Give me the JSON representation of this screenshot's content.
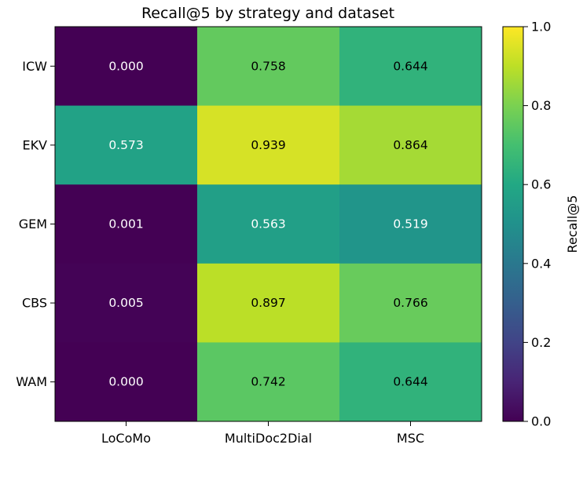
{
  "chart_data": {
    "type": "heatmap",
    "title": "Recall@5 by strategy and dataset",
    "x_categories": [
      "LoCoMo",
      "MultiDoc2Dial",
      "MSC"
    ],
    "y_categories": [
      "ICW",
      "EKV",
      "GEM",
      "CBS",
      "WAM"
    ],
    "values": [
      [
        0.0,
        0.758,
        0.644
      ],
      [
        0.573,
        0.939,
        0.864
      ],
      [
        0.001,
        0.563,
        0.519
      ],
      [
        0.005,
        0.897,
        0.766
      ],
      [
        0.0,
        0.742,
        0.644
      ]
    ],
    "value_labels": [
      [
        "0.000",
        "0.758",
        "0.644"
      ],
      [
        "0.573",
        "0.939",
        "0.864"
      ],
      [
        "0.001",
        "0.563",
        "0.519"
      ],
      [
        "0.005",
        "0.897",
        "0.766"
      ],
      [
        "0.000",
        "0.742",
        "0.644"
      ]
    ],
    "colormap": "viridis",
    "vmin": 0.0,
    "vmax": 1.0,
    "colorbar": {
      "label": "Recall@5",
      "ticks": [
        0.0,
        0.2,
        0.4,
        0.6,
        0.8,
        1.0
      ],
      "tick_labels": [
        "0.0",
        "0.2",
        "0.4",
        "0.6",
        "0.8",
        "1.0"
      ]
    },
    "grid": false
  }
}
